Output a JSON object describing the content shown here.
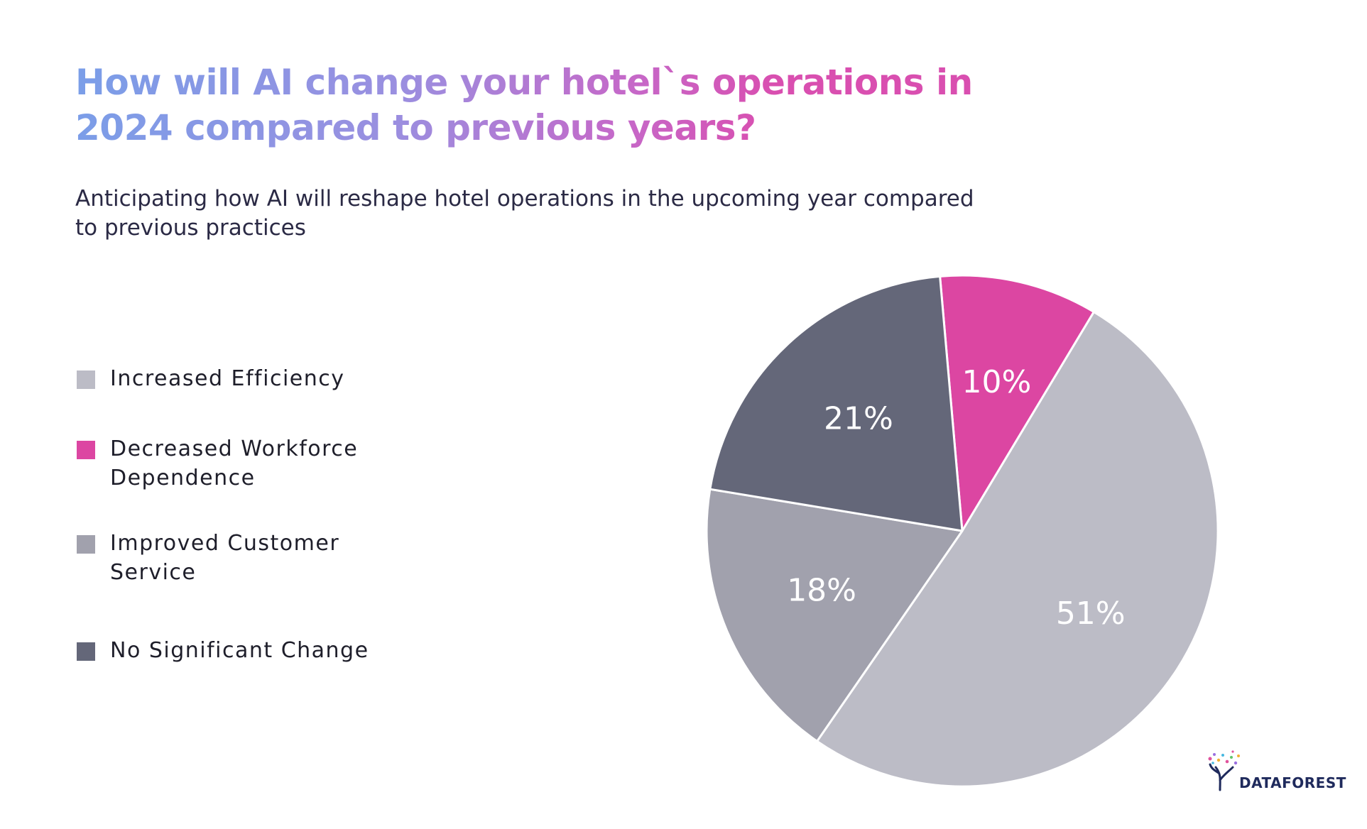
{
  "chart_data": {
    "type": "pie",
    "title": "How will AI change your hotel`s operations in 2024 compared to previous years?",
    "title_lines": [
      "How will AI change your hotel`s operations in",
      "2024 compared to previous years?"
    ],
    "subtitle": "Anticipating how AI will reshape hotel operations in the upcoming year compared to previous practices",
    "subtitle_lines": [
      "Anticipating how AI will reshape hotel operations in the upcoming year compared",
      "to previous practices"
    ],
    "legend_placement": "left",
    "slices": [
      {
        "label": "Increased Efficiency",
        "label_lines": [
          "Increased Efficiency"
        ],
        "value": 51,
        "value_label": "51%",
        "color": "#bcbcc6"
      },
      {
        "label": "Decreased Workforce Dependence",
        "label_lines": [
          "Decreased Workforce",
          "Dependence"
        ],
        "value": 10,
        "value_label": "10%",
        "color": "#dc46a2"
      },
      {
        "label": "Improved Customer Service",
        "label_lines": [
          "Improved Customer",
          "Service"
        ],
        "value": 18,
        "value_label": "18%",
        "color": "#a1a1ad"
      },
      {
        "label": "No Significant Change",
        "label_lines": [
          "No Significant Change"
        ],
        "value": 21,
        "value_label": "21%",
        "color": "#646779"
      }
    ]
  },
  "logo": {
    "text": "DATAFOREST",
    "icon": "tree-icon"
  }
}
